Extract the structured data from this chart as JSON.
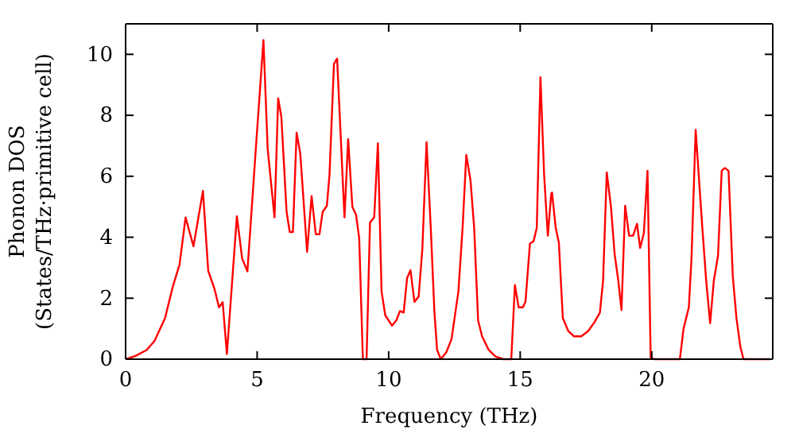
{
  "chart_data": {
    "type": "line",
    "xlabel": "Frequency (THz)",
    "ylabel": "Phonon DOS\n(States/THz·primitive cell)",
    "xlim": [
      0,
      24.6
    ],
    "ylim": [
      0,
      11
    ],
    "xticks": [
      0,
      5,
      10,
      15,
      20
    ],
    "yticks": [
      0,
      2,
      4,
      6,
      8,
      10
    ],
    "grid": false,
    "marker": "none",
    "line_style": "solid",
    "series": [
      {
        "color": "#ff0000",
        "x": [
          0,
          0.36,
          0.8,
          1.1,
          1.5,
          1.8,
          2.05,
          2.28,
          2.58,
          2.94,
          3.14,
          3.38,
          3.55,
          3.69,
          3.85,
          4.23,
          4.43,
          4.63,
          4.95,
          5.24,
          5.4,
          5.66,
          5.8,
          5.92,
          6.12,
          6.24,
          6.36,
          6.5,
          6.64,
          6.9,
          7.07,
          7.23,
          7.37,
          7.49,
          7.65,
          7.75,
          7.92,
          8.04,
          8.32,
          8.46,
          8.62,
          8.76,
          8.88,
          9.02,
          9.16,
          9.29,
          9.45,
          9.59,
          9.73,
          9.87,
          10.13,
          10.29,
          10.43,
          10.57,
          10.7,
          10.83,
          10.98,
          11.14,
          11.28,
          11.44,
          11.6,
          11.74,
          11.84,
          11.98,
          12.19,
          12.39,
          12.65,
          12.81,
          12.95,
          13.11,
          13.25,
          13.4,
          13.55,
          13.8,
          14.06,
          14.36,
          14.66,
          14.8,
          14.94,
          15.1,
          15.2,
          15.37,
          15.51,
          15.63,
          15.77,
          15.91,
          16.05,
          16.18,
          16.21,
          16.35,
          16.47,
          16.62,
          16.83,
          17.04,
          17.32,
          17.58,
          17.82,
          18.03,
          18.15,
          18.29,
          18.45,
          18.59,
          18.73,
          18.85,
          18.99,
          19.14,
          19.29,
          19.44,
          19.56,
          19.7,
          19.84,
          19.96,
          20.1,
          21.07,
          21.21,
          21.41,
          21.51,
          21.67,
          21.91,
          22.07,
          22.22,
          22.36,
          22.52,
          22.66,
          22.78,
          22.92,
          23.08,
          23.22,
          23.37,
          23.49,
          24.5
        ],
        "values": [
          0,
          0.1,
          0.3,
          0.6,
          1.35,
          2.4,
          3.1,
          4.65,
          3.7,
          5.52,
          2.9,
          2.3,
          1.7,
          1.87,
          0.17,
          4.69,
          3.3,
          2.88,
          6.9,
          10.47,
          6.9,
          4.65,
          8.56,
          7.95,
          4.83,
          4.17,
          4.17,
          7.43,
          6.74,
          3.52,
          5.35,
          4.1,
          4.1,
          4.83,
          5.03,
          6.04,
          9.69,
          9.86,
          4.65,
          7.22,
          5.0,
          4.74,
          3.96,
          0,
          0,
          4.48,
          4.65,
          7.08,
          2.22,
          1.44,
          1.1,
          1.27,
          1.58,
          1.53,
          2.66,
          2.92,
          1.88,
          2.05,
          3.61,
          7.12,
          4.31,
          1.53,
          0.31,
          0,
          0.22,
          0.66,
          2.22,
          4.31,
          6.7,
          5.87,
          4.31,
          1.27,
          0.75,
          0.31,
          0.09,
          0,
          0,
          2.43,
          1.7,
          1.7,
          1.88,
          3.79,
          3.87,
          4.31,
          9.25,
          6.04,
          4.05,
          5.43,
          5.47,
          4.31,
          3.82,
          1.35,
          0.92,
          0.75,
          0.75,
          0.92,
          1.21,
          1.53,
          2.57,
          6.13,
          5.0,
          3.44,
          2.57,
          1.61,
          5.03,
          4.05,
          4.05,
          4.44,
          3.65,
          4.13,
          6.18,
          0.05,
          0,
          0,
          1.0,
          1.7,
          3.27,
          7.52,
          4.48,
          2.57,
          1.18,
          2.57,
          3.4,
          6.18,
          6.27,
          6.18,
          2.74,
          1.35,
          0.4,
          0,
          0
        ]
      }
    ]
  }
}
